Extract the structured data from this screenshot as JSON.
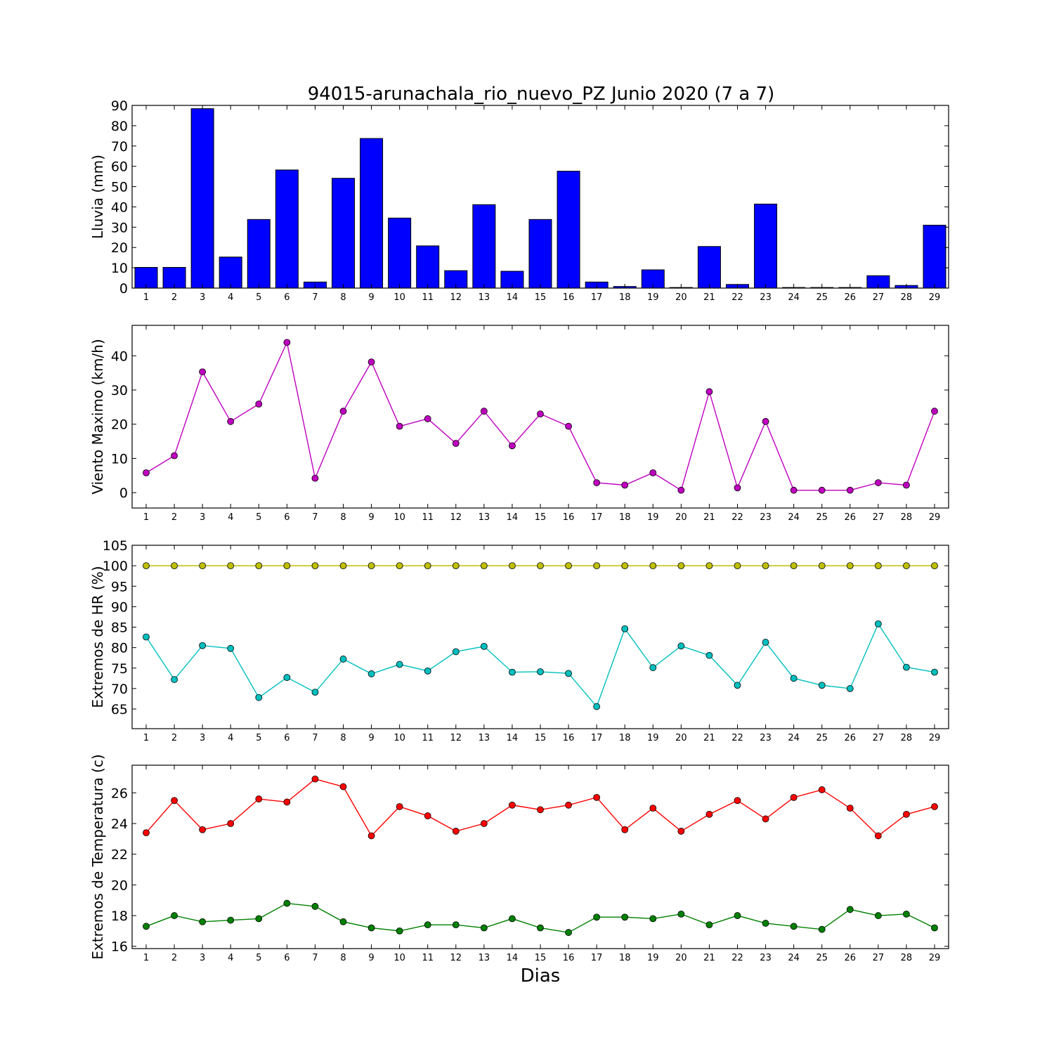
{
  "title": "94015-arunachala_rio_nuevo_PZ Junio 2020  (7 a 7)",
  "xlabel": "Dias",
  "chart_data": [
    {
      "type": "bar",
      "ylabel": "Lluvia (mm)",
      "ylim": [
        0,
        90
      ],
      "yticks": [
        0,
        10,
        20,
        30,
        40,
        50,
        60,
        70,
        80,
        90
      ],
      "categories": [
        1,
        2,
        3,
        4,
        5,
        6,
        7,
        8,
        9,
        10,
        11,
        12,
        13,
        14,
        15,
        16,
        17,
        18,
        19,
        20,
        21,
        22,
        23,
        24,
        25,
        26,
        27,
        28,
        29
      ],
      "series": [
        {
          "color": "#0000ff",
          "values": [
            10.2,
            10.2,
            88.4,
            15.3,
            33.8,
            58.2,
            3.0,
            54.1,
            73.7,
            34.5,
            20.8,
            8.6,
            41.1,
            8.3,
            33.8,
            57.6,
            3.0,
            0.8,
            9.0,
            0.3,
            20.5,
            1.8,
            41.4,
            0.3,
            0.3,
            0.3,
            6.1,
            1.3,
            31.0
          ]
        }
      ]
    },
    {
      "type": "line",
      "ylabel": "Viento Maximo (km/h)",
      "ylim": [
        -4.5,
        48.9
      ],
      "yticks": [
        0,
        10,
        20,
        30,
        40
      ],
      "categories": [
        1,
        2,
        3,
        4,
        5,
        6,
        7,
        8,
        9,
        10,
        11,
        12,
        13,
        14,
        15,
        16,
        17,
        18,
        19,
        20,
        21,
        22,
        23,
        24,
        25,
        26,
        27,
        28,
        29
      ],
      "series": [
        {
          "color": "#bf00bf",
          "values": [
            5.8,
            10.8,
            35.3,
            20.8,
            25.9,
            43.9,
            4.2,
            23.8,
            38.2,
            19.4,
            21.6,
            14.4,
            23.8,
            13.7,
            23.0,
            19.4,
            2.9,
            2.2,
            5.8,
            0.7,
            29.5,
            1.4,
            20.8,
            0.7,
            0.7,
            0.7,
            2.9,
            2.2,
            23.8
          ]
        }
      ]
    },
    {
      "type": "line",
      "ylabel": "Extremos de HR (%)",
      "ylim": [
        60.2,
        105
      ],
      "yticks": [
        65,
        70,
        75,
        80,
        85,
        90,
        95,
        100,
        105
      ],
      "categories": [
        1,
        2,
        3,
        4,
        5,
        6,
        7,
        8,
        9,
        10,
        11,
        12,
        13,
        14,
        15,
        16,
        17,
        18,
        19,
        20,
        21,
        22,
        23,
        24,
        25,
        26,
        27,
        28,
        29
      ],
      "series": [
        {
          "color": "#bfbf00",
          "values": [
            100,
            100,
            100,
            100,
            100,
            100,
            100,
            100,
            100,
            100,
            100,
            100,
            100,
            100,
            100,
            100,
            100,
            100,
            100,
            100,
            100,
            100,
            100,
            100,
            100,
            100,
            100,
            100,
            100
          ]
        },
        {
          "color": "#00bfbf",
          "values": [
            82.6,
            72.2,
            80.5,
            79.8,
            67.8,
            72.7,
            69.1,
            77.2,
            73.6,
            75.9,
            74.3,
            79.0,
            80.3,
            74.0,
            74.1,
            73.7,
            65.6,
            84.6,
            75.1,
            80.4,
            78.1,
            70.8,
            81.3,
            72.5,
            70.8,
            70.0,
            85.8,
            75.2,
            74.0
          ]
        }
      ]
    },
    {
      "type": "line",
      "ylabel": "Extremos de Temperatura (c)",
      "ylim": [
        15.85,
        27.8
      ],
      "yticks": [
        16,
        18,
        20,
        22,
        24,
        26
      ],
      "categories": [
        1,
        2,
        3,
        4,
        5,
        6,
        7,
        8,
        9,
        10,
        11,
        12,
        13,
        14,
        15,
        16,
        17,
        18,
        19,
        20,
        21,
        22,
        23,
        24,
        25,
        26,
        27,
        28,
        29
      ],
      "series": [
        {
          "color": "#ff0000",
          "values": [
            23.4,
            25.5,
            23.6,
            24.0,
            25.6,
            25.4,
            26.9,
            26.4,
            23.2,
            25.1,
            24.5,
            23.5,
            24.0,
            25.2,
            24.9,
            25.2,
            25.7,
            23.6,
            25.0,
            23.5,
            24.6,
            25.5,
            24.3,
            25.7,
            26.2,
            25.0,
            23.2,
            24.6,
            25.1
          ]
        },
        {
          "color": "#008000",
          "values": [
            17.3,
            18.0,
            17.6,
            17.7,
            17.8,
            18.8,
            18.6,
            17.6,
            17.2,
            17.0,
            17.4,
            17.4,
            17.2,
            17.8,
            17.2,
            16.9,
            17.9,
            17.9,
            17.8,
            18.1,
            17.4,
            18.0,
            17.5,
            17.3,
            17.1,
            18.4,
            18.0,
            18.1,
            17.2
          ]
        }
      ]
    }
  ]
}
